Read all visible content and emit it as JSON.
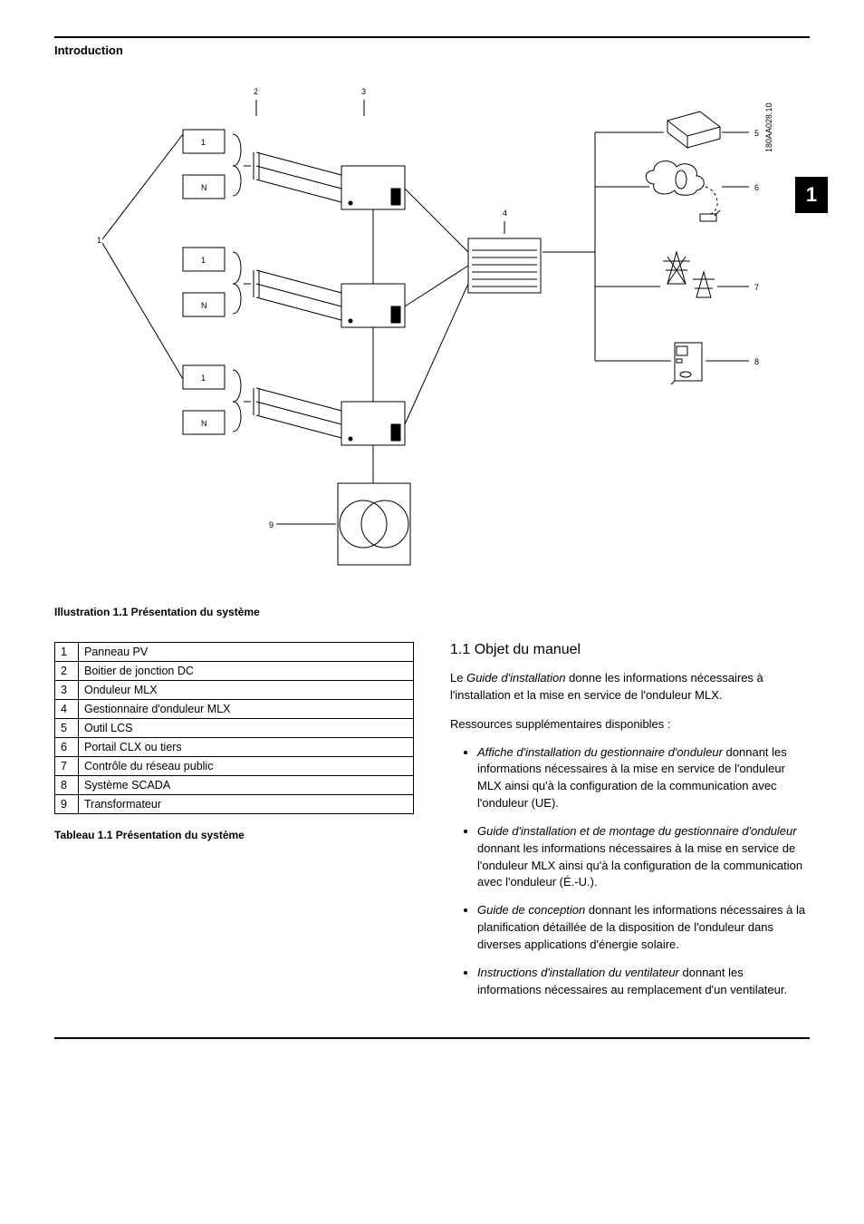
{
  "header": {
    "title": "Introduction"
  },
  "chapter_tab": "1",
  "figure": {
    "ref_code": "180AA028.10",
    "caption": "Illustration 1.1 Présentation du système",
    "labels": {
      "n1": "1",
      "n2": "2",
      "n3": "3",
      "n4": "4",
      "n5": "5",
      "n6": "6",
      "n7": "7",
      "n8": "8",
      "n9": "9",
      "box1": "1",
      "boxN": "N"
    },
    "style": {
      "stroke": "#000000",
      "stroke_width": 1,
      "font_family": "Segoe UI, Arial, sans-serif",
      "font_size_small": 9,
      "font_size_vertical": 9
    }
  },
  "legend": {
    "caption": "Tableau 1.1 Présentation du système",
    "rows": [
      {
        "n": "1",
        "label": "Panneau PV"
      },
      {
        "n": "2",
        "label": "Boitier de jonction DC"
      },
      {
        "n": "3",
        "label": "Onduleur MLX"
      },
      {
        "n": "4",
        "label": "Gestionnaire d'onduleur MLX"
      },
      {
        "n": "5",
        "label": "Outil LCS"
      },
      {
        "n": "6",
        "label": "Portail CLX ou tiers"
      },
      {
        "n": "7",
        "label": "Contrôle du réseau public"
      },
      {
        "n": "8",
        "label": "Système SCADA"
      },
      {
        "n": "9",
        "label": "Transformateur"
      }
    ]
  },
  "section": {
    "heading": "1.1  Objet du manuel",
    "intro_a": "Le ",
    "intro_ital": "Guide d'installation",
    "intro_b": " donne les informations nécessaires à l'installation et la mise en service de l'onduleur MLX.",
    "resources_line": "Ressources supplémentaires disponibles :",
    "bullets": [
      {
        "ital": "Affiche d'installation du gestionnaire d'onduleur",
        "rest": " donnant les informations nécessaires à la mise en service de l'onduleur MLX ainsi qu'à la configuration de la communication avec l'onduleur (UE)."
      },
      {
        "ital": "Guide d'installation et de montage du gestionnaire d'onduleur",
        "rest": " donnant les informations nécessaires à la mise en service de l'onduleur MLX ainsi qu'à la configuration de la communication avec l'onduleur (É.-U.)."
      },
      {
        "ital": "Guide de conception",
        "rest": " donnant les informations nécessaires à la planification détaillée de la disposition de l'onduleur dans diverses applications d'énergie solaire."
      },
      {
        "ital": "Instructions d'installation du ventilateur",
        "rest": " donnant les informations nécessaires au remplacement d'un ventilateur."
      }
    ]
  }
}
